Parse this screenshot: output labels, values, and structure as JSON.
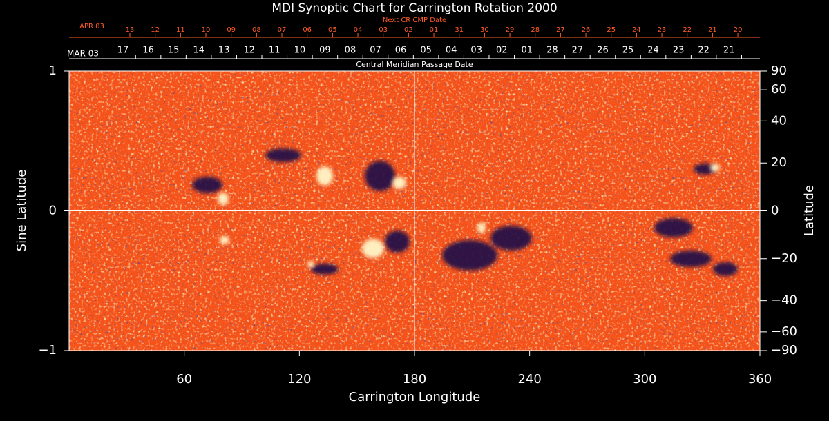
{
  "chart_data": {
    "type": "image",
    "title": "MDI Synoptic Chart for Carrington Rotation 2000",
    "xlabel": "Carrington Longitude",
    "ylabel": "Sine Latitude",
    "y2label": "Latitude",
    "xlim": [
      0,
      360
    ],
    "xticks": [
      60,
      120,
      180,
      240,
      300,
      360
    ],
    "ylim": [
      -1,
      1
    ],
    "yticks": [
      {
        "value": -1,
        "label": "−1"
      },
      0,
      1
    ],
    "y2lim": [
      -90,
      90
    ],
    "y2scale": "sine",
    "y2ticks": [
      90,
      60,
      40,
      20,
      0,
      {
        "value": -20,
        "label": "−20"
      },
      {
        "value": -40,
        "label": "−40"
      },
      {
        "value": -60,
        "label": "−60"
      },
      {
        "value": -90,
        "label": "−90"
      }
    ],
    "top_axis": {
      "label": "Central Meridian Passage Date",
      "start": "MAR 03",
      "categories": [
        "17",
        "16",
        "15",
        "14",
        "13",
        "12",
        "11",
        "10",
        "09",
        "08",
        "07",
        "06",
        "05",
        "04",
        "03",
        "02",
        "01",
        "28",
        "27",
        "26",
        "25",
        "24",
        "23",
        "22",
        "21"
      ]
    },
    "top_axis2": {
      "label": "Next CR CMP Date",
      "start": "APR 03",
      "color": "#ff5a28",
      "categories": [
        "13",
        "12",
        "11",
        "10",
        "09",
        "08",
        "07",
        "06",
        "05",
        "04",
        "03",
        "02",
        "01",
        "31",
        "30",
        "29",
        "28",
        "27",
        "26",
        "25",
        "24",
        "23",
        "22",
        "21",
        "20"
      ]
    }
  }
}
